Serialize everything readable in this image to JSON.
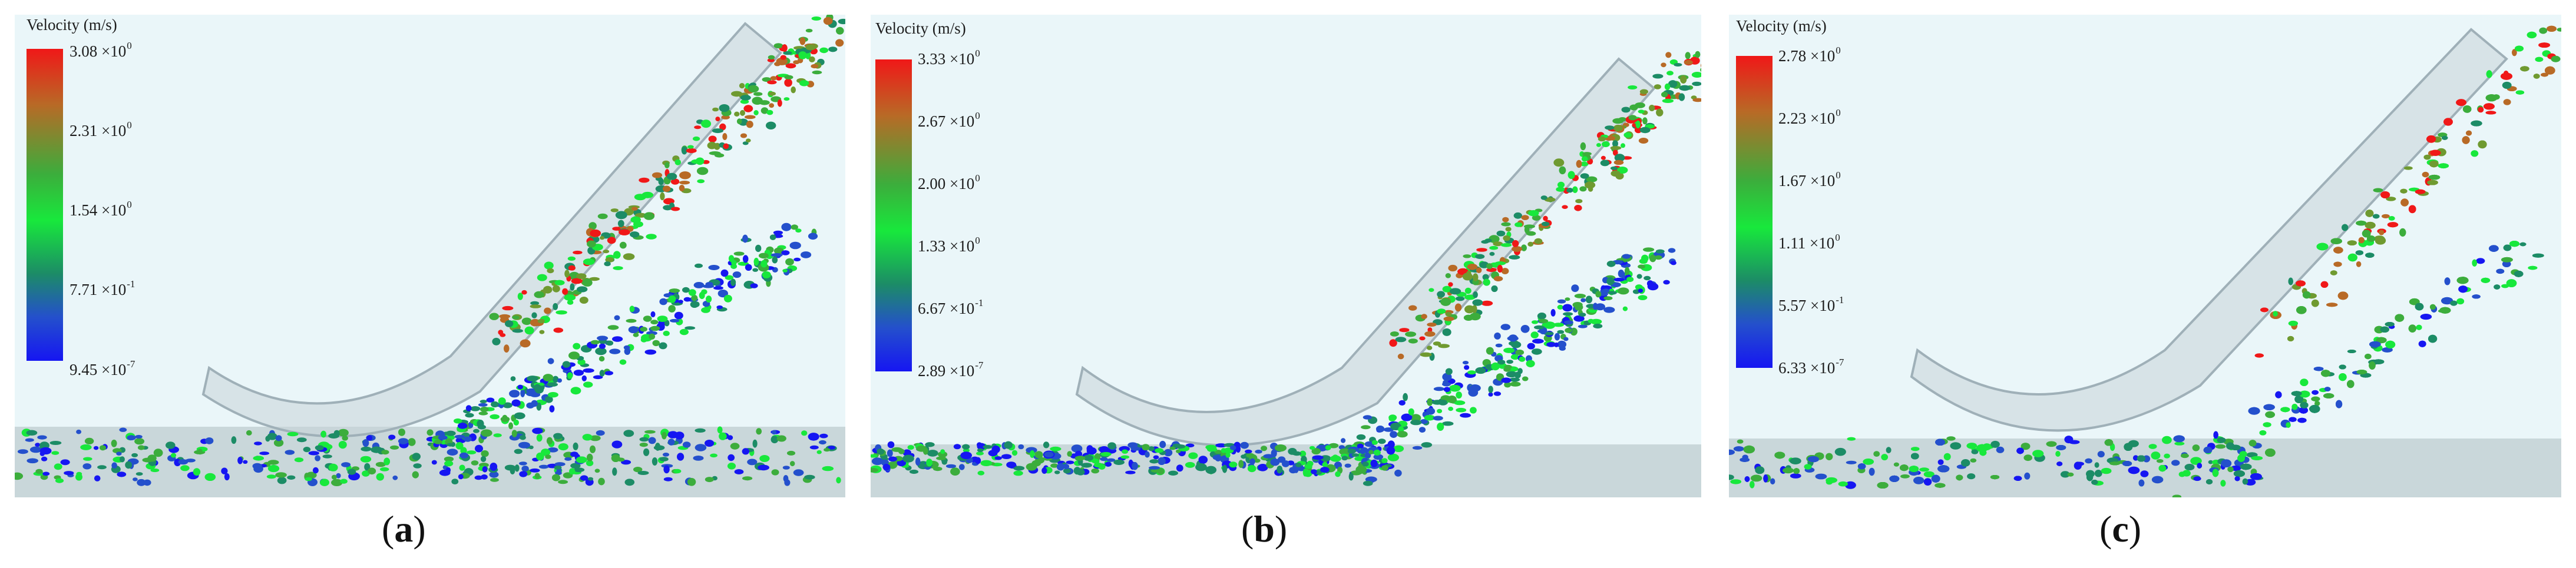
{
  "colorbar_title": "Velocity (m/s)",
  "panels": [
    {
      "label_open": "(",
      "label_letter": "a",
      "label_close": ")",
      "ticks": [
        {
          "mant": "3.08 ×10",
          "exp": "0"
        },
        {
          "mant": "2.31 ×10",
          "exp": "0"
        },
        {
          "mant": "1.54 ×10",
          "exp": "0"
        },
        {
          "mant": "7.71 ×10",
          "exp": "-1"
        },
        {
          "mant": "9.45 ×10",
          "exp": "-7"
        }
      ]
    },
    {
      "label_open": "(",
      "label_letter": "b",
      "label_close": ")",
      "ticks": [
        {
          "mant": "3.33 ×10",
          "exp": "0"
        },
        {
          "mant": "2.67 ×10",
          "exp": "0"
        },
        {
          "mant": "2.00 ×10",
          "exp": "0"
        },
        {
          "mant": "1.33 ×10",
          "exp": "0"
        },
        {
          "mant": "6.67 ×10",
          "exp": "-1"
        },
        {
          "mant": "2.89 ×10",
          "exp": "-7"
        }
      ]
    },
    {
      "label_open": "(",
      "label_letter": "c",
      "label_close": ")",
      "ticks": [
        {
          "mant": "2.78 ×10",
          "exp": "0"
        },
        {
          "mant": "2.23 ×10",
          "exp": "0"
        },
        {
          "mant": "1.67 ×10",
          "exp": "0"
        },
        {
          "mant": "1.11 ×10",
          "exp": "0"
        },
        {
          "mant": "5.57 ×10",
          "exp": "-1"
        },
        {
          "mant": "6.33 ×10",
          "exp": "-7"
        }
      ]
    }
  ],
  "colors": {
    "background": "#eaf6f9",
    "floor": "#c9d7da",
    "chute": "#c6d3d8",
    "low_velocity": "#1616f2",
    "mid_velocity": "#18e83c",
    "high_velocity": "#f01818"
  }
}
